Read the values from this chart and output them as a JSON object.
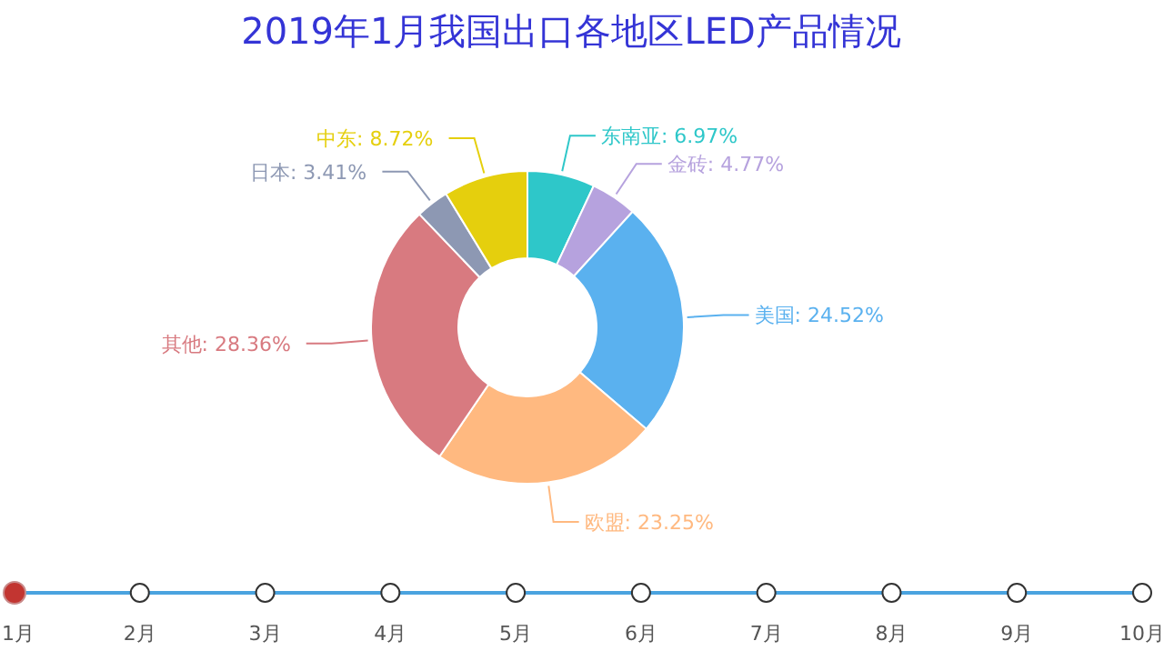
{
  "chart_data": {
    "type": "donut",
    "title": "2019年1月我国出口各地区LED产品情况",
    "categories": [
      "东南亚",
      "金砖",
      "美国",
      "欧盟",
      "其他",
      "日本",
      "中东"
    ],
    "values": [
      6.97,
      4.77,
      24.52,
      23.25,
      28.36,
      3.41,
      8.72
    ],
    "colors": [
      "#2ec7c9",
      "#b6a2de",
      "#5ab1ef",
      "#ffb980",
      "#d87a80",
      "#8d98b3",
      "#e5cf0d"
    ],
    "value_labels": [
      ": 6.97%",
      ": 4.77%",
      ": 24.52%",
      ": 23.25%",
      ": 28.36%",
      ": 3.41%",
      ": 8.72%"
    ],
    "annotations": [
      "1月",
      "2月",
      "3月",
      "4月",
      "5月",
      "6月",
      "7月",
      "8月",
      "9月",
      "10月"
    ]
  }
}
